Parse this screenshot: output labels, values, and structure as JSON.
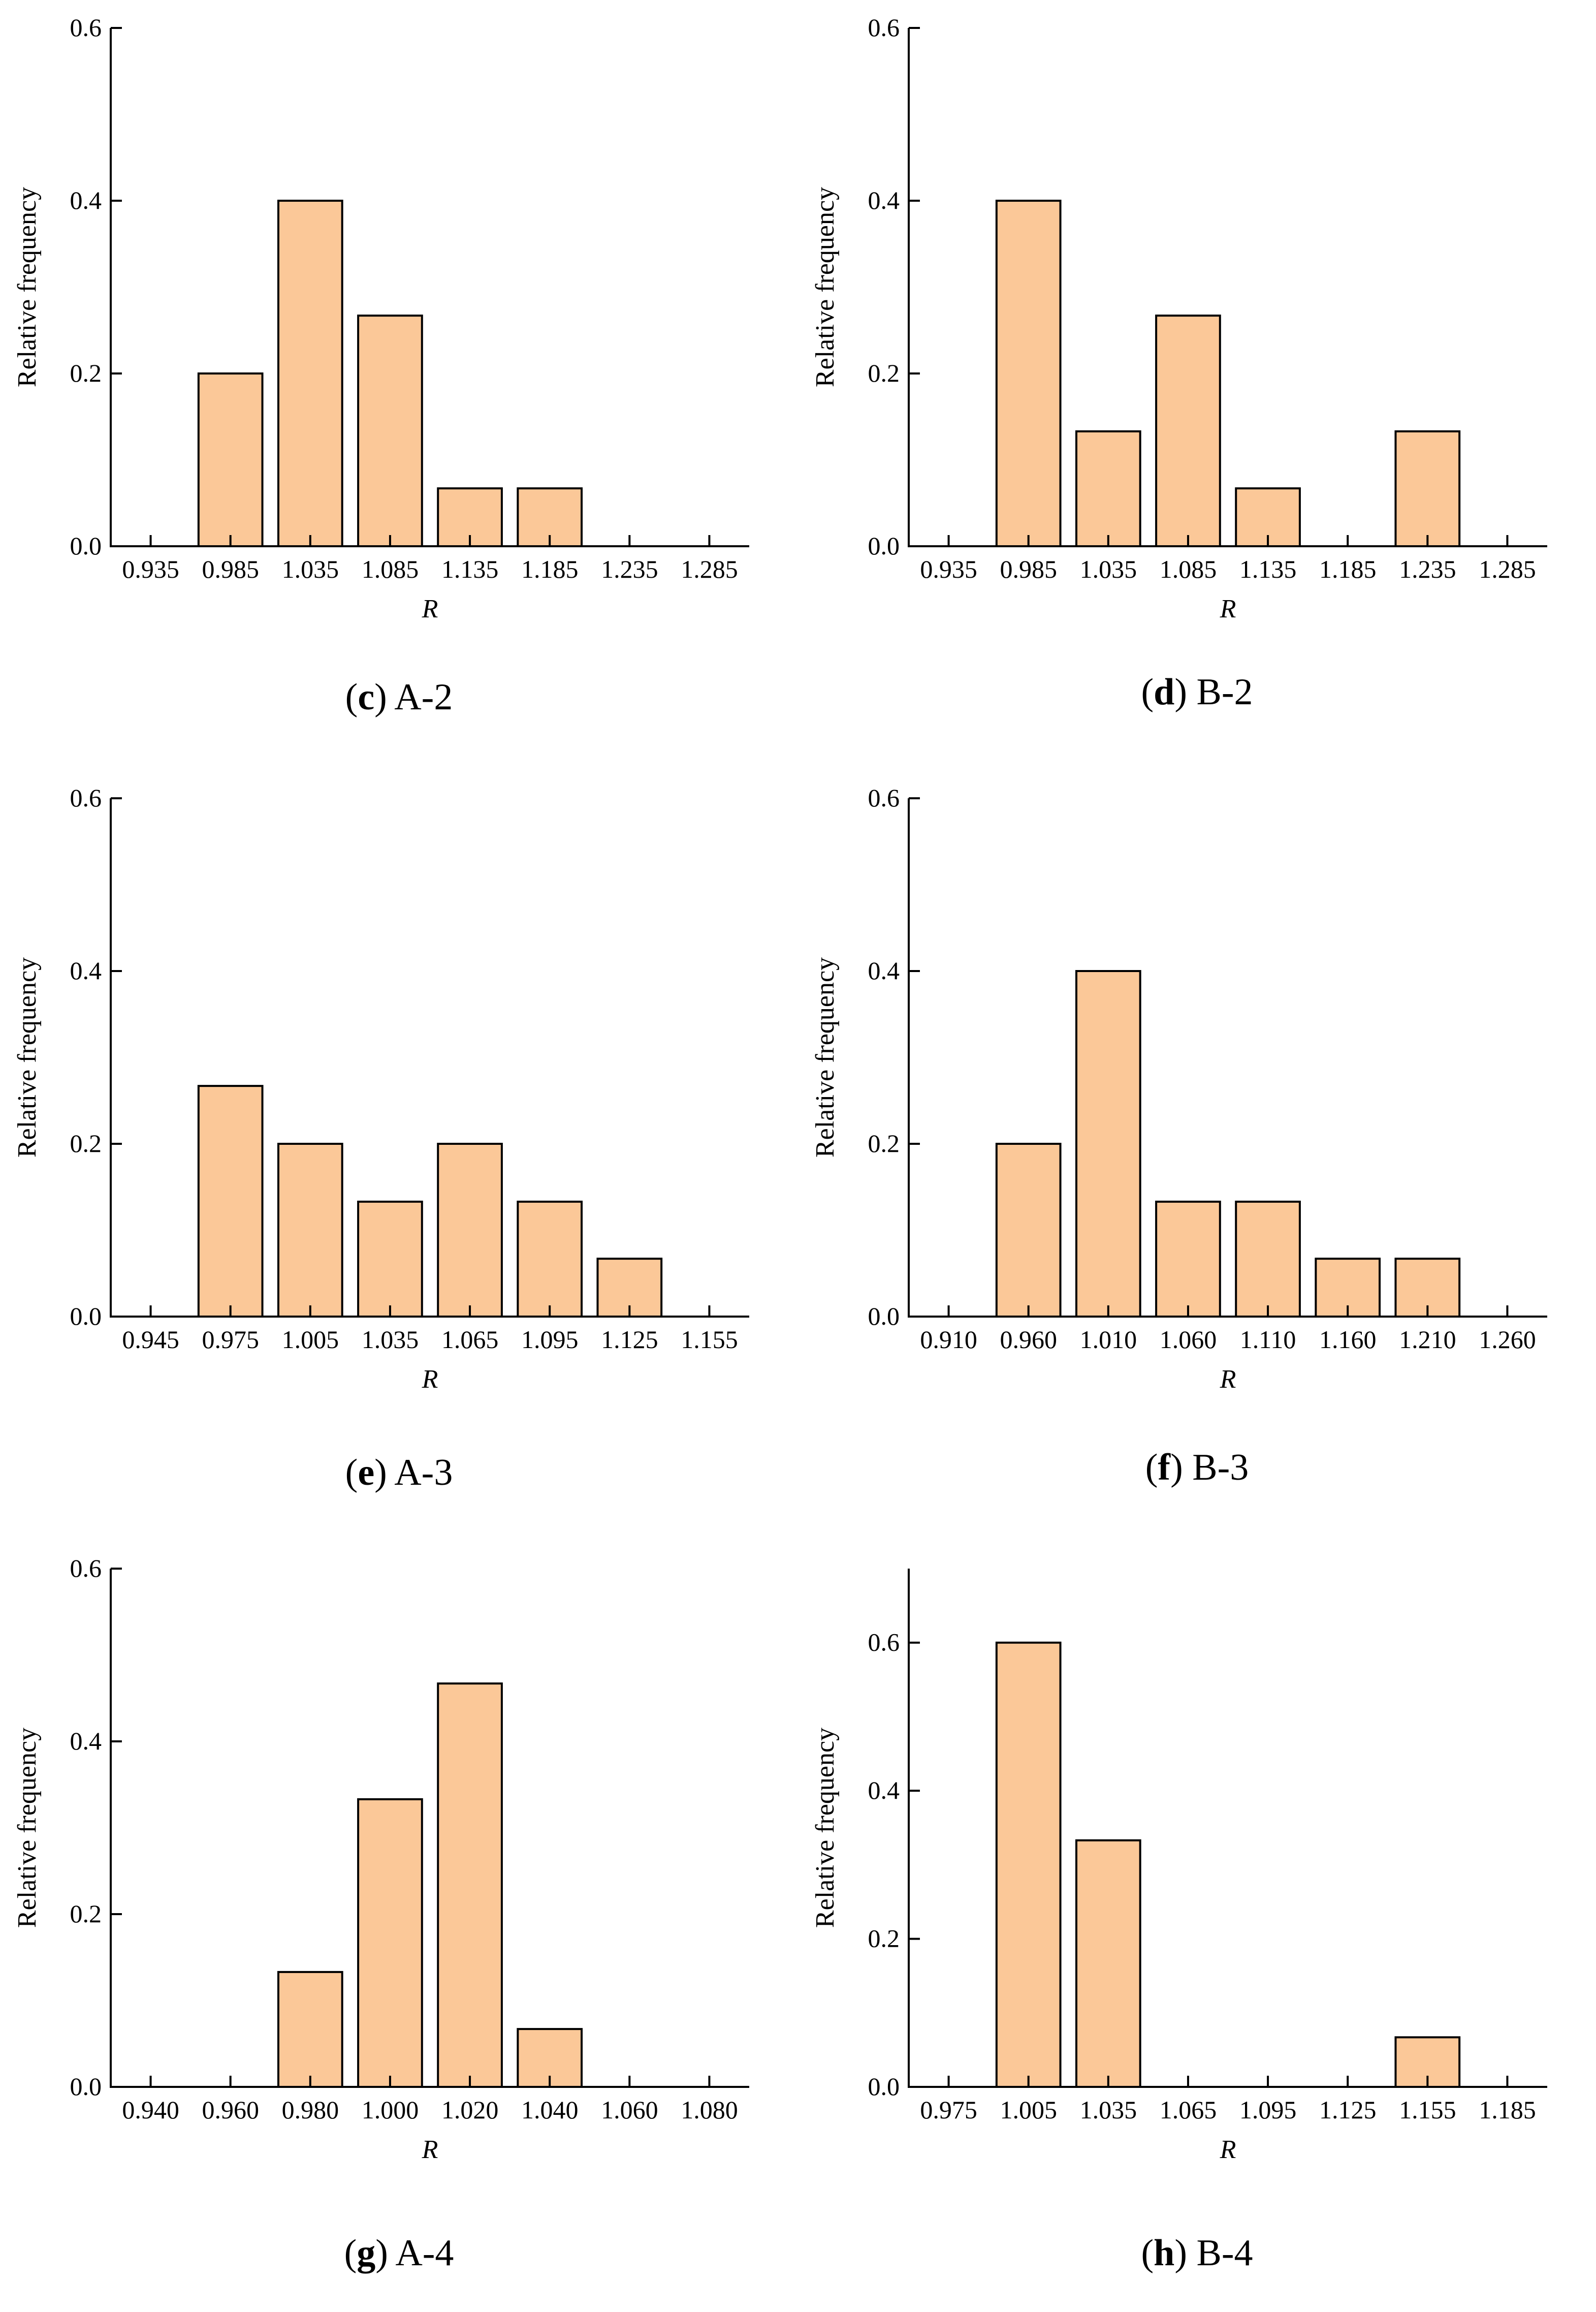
{
  "figure": {
    "bar_color": "#FBC898",
    "edge_color": "#000000"
  },
  "chart_data": [
    {
      "panel_id": "c",
      "caption_letter": "c",
      "caption_text": "A-2",
      "type": "bar",
      "xlabel": "R",
      "ylabel": "Relative frequency",
      "categories": [
        "0.935",
        "0.985",
        "1.035",
        "1.085",
        "1.135",
        "1.185",
        "1.235",
        "1.285"
      ],
      "values": [
        0.0,
        0.2,
        0.4,
        0.267,
        0.067,
        0.067,
        0.0,
        0.0
      ],
      "ylim": [
        0,
        0.6
      ],
      "yticks": [
        "0.0",
        "0.2",
        "0.4",
        "0.6"
      ],
      "grid": false
    },
    {
      "panel_id": "d",
      "caption_letter": "d",
      "caption_text": "B-2",
      "type": "bar",
      "xlabel": "R",
      "ylabel": "Relative frequency",
      "categories": [
        "0.935",
        "0.985",
        "1.035",
        "1.085",
        "1.135",
        "1.185",
        "1.235",
        "1.285"
      ],
      "values": [
        0.0,
        0.4,
        0.133,
        0.267,
        0.067,
        0.0,
        0.133,
        0.0
      ],
      "ylim": [
        0,
        0.6
      ],
      "yticks": [
        "0.0",
        "0.2",
        "0.4",
        "0.6"
      ],
      "grid": false
    },
    {
      "panel_id": "e",
      "caption_letter": "e",
      "caption_text": "A-3",
      "type": "bar",
      "xlabel": "R",
      "ylabel": "Relative frequency",
      "categories": [
        "0.945",
        "0.975",
        "1.005",
        "1.035",
        "1.065",
        "1.095",
        "1.125",
        "1.155"
      ],
      "values": [
        0.0,
        0.267,
        0.2,
        0.133,
        0.2,
        0.133,
        0.067,
        0.0
      ],
      "ylim": [
        0,
        0.6
      ],
      "yticks": [
        "0.0",
        "0.2",
        "0.4",
        "0.6"
      ],
      "grid": false
    },
    {
      "panel_id": "f",
      "caption_letter": "f",
      "caption_text": "B-3",
      "type": "bar",
      "xlabel": "R",
      "ylabel": "Relative frequency",
      "categories": [
        "0.910",
        "0.960",
        "1.010",
        "1.060",
        "1.110",
        "1.160",
        "1.210",
        "1.260"
      ],
      "values": [
        0.0,
        0.2,
        0.4,
        0.133,
        0.133,
        0.067,
        0.067,
        0.0
      ],
      "ylim": [
        0,
        0.6
      ],
      "yticks": [
        "0.0",
        "0.2",
        "0.4",
        "0.6"
      ],
      "grid": false
    },
    {
      "panel_id": "g",
      "caption_letter": "g",
      "caption_text": "A-4",
      "type": "bar",
      "xlabel": "R",
      "ylabel": "Relative frequency",
      "categories": [
        "0.940",
        "0.960",
        "0.980",
        "1.000",
        "1.020",
        "1.040",
        "1.060",
        "1.080"
      ],
      "values": [
        0.0,
        0.0,
        0.133,
        0.333,
        0.467,
        0.067,
        0.0,
        0.0
      ],
      "ylim": [
        0,
        0.6
      ],
      "yticks": [
        "0.0",
        "0.2",
        "0.4",
        "0.6"
      ],
      "grid": false
    },
    {
      "panel_id": "h",
      "caption_letter": "h",
      "caption_text": "B-4",
      "type": "bar",
      "xlabel": "R",
      "ylabel": "Relative frequency",
      "categories": [
        "0.975",
        "1.005",
        "1.035",
        "1.065",
        "1.095",
        "1.125",
        "1.155",
        "1.185"
      ],
      "values": [
        0.0,
        0.6,
        0.333,
        0.0,
        0.0,
        0.0,
        0.067,
        0.0
      ],
      "ylim": [
        0,
        0.7
      ],
      "yticks": [
        "0.0",
        "0.2",
        "0.4",
        "0.6"
      ],
      "grid": false
    }
  ]
}
